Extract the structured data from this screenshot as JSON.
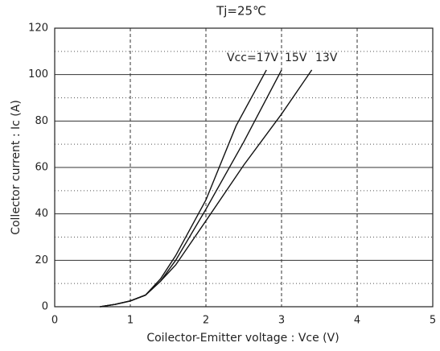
{
  "chart_data": {
    "type": "line",
    "title": "Tj=25℃",
    "xlabel": "Coilector-Emitter voltage : Vce (V)",
    "ylabel": "Collector current : Ic (A)",
    "xlim": [
      0,
      5
    ],
    "xticks": [
      0,
      1,
      2,
      3,
      4,
      5
    ],
    "ylim": [
      0,
      120
    ],
    "yticks": [
      0,
      20,
      40,
      60,
      80,
      100,
      120
    ],
    "minor_yticks": [
      10,
      30,
      50,
      70,
      90,
      110
    ],
    "grid": true,
    "series": [
      {
        "name": "Vcc=17V",
        "color": "#111111",
        "x": [
          0.6,
          0.8,
          1.0,
          1.2,
          1.4,
          1.6,
          2.0,
          2.4,
          2.8
        ],
        "values": [
          0,
          1,
          2.5,
          5,
          12,
          22,
          46,
          78,
          102
        ]
      },
      {
        "name": "15V",
        "color": "#111111",
        "x": [
          0.6,
          0.8,
          1.0,
          1.2,
          1.4,
          1.6,
          2.0,
          2.5,
          3.0
        ],
        "values": [
          0,
          1,
          2.5,
          5,
          11,
          20,
          42,
          71,
          102
        ]
      },
      {
        "name": "13V",
        "color": "#111111",
        "x": [
          0.6,
          0.8,
          1.0,
          1.2,
          1.4,
          1.6,
          2.0,
          2.5,
          3.0,
          3.4
        ],
        "values": [
          0,
          1,
          2.5,
          5,
          11,
          18,
          37,
          61,
          83,
          102
        ]
      }
    ]
  }
}
